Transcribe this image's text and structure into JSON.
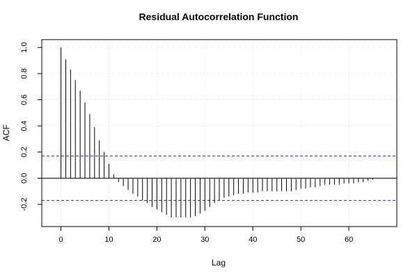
{
  "chart_data": {
    "type": "bar",
    "title": "Residual Autocorrelation Function",
    "xlabel": "Lag",
    "ylabel": "ACF",
    "xlim": [
      -4,
      70
    ],
    "ylim": [
      -0.37,
      1.06
    ],
    "x_ticks": [
      0,
      10,
      20,
      30,
      40,
      50,
      60
    ],
    "y_ticks": [
      -0.2,
      0.0,
      0.2,
      0.4,
      0.6,
      0.8,
      1.0
    ],
    "grid": true,
    "confidence_bound": 0.17,
    "colors": {
      "bars": "#000000",
      "confidence": "#2222dd",
      "grid": "#dddddd",
      "zero_line": "#000000"
    },
    "lags": [
      0,
      1,
      2,
      3,
      4,
      5,
      6,
      7,
      8,
      9,
      10,
      11,
      12,
      13,
      14,
      15,
      16,
      17,
      18,
      19,
      20,
      21,
      22,
      23,
      24,
      25,
      26,
      27,
      28,
      29,
      30,
      31,
      32,
      33,
      34,
      35,
      36,
      37,
      38,
      39,
      40,
      41,
      42,
      43,
      44,
      45,
      46,
      47,
      48,
      49,
      50,
      51,
      52,
      53,
      54,
      55,
      56,
      57,
      58,
      59,
      60,
      61,
      62,
      63,
      64,
      65,
      66
    ],
    "values": [
      1.0,
      0.91,
      0.83,
      0.75,
      0.67,
      0.58,
      0.49,
      0.39,
      0.29,
      0.2,
      0.11,
      0.03,
      -0.03,
      -0.06,
      -0.09,
      -0.12,
      -0.14,
      -0.17,
      -0.19,
      -0.22,
      -0.24,
      -0.26,
      -0.28,
      -0.3,
      -0.3,
      -0.3,
      -0.3,
      -0.3,
      -0.29,
      -0.27,
      -0.25,
      -0.22,
      -0.19,
      -0.17,
      -0.15,
      -0.14,
      -0.13,
      -0.12,
      -0.12,
      -0.11,
      -0.11,
      -0.11,
      -0.1,
      -0.1,
      -0.1,
      -0.1,
      -0.1,
      -0.1,
      -0.1,
      -0.09,
      -0.08,
      -0.08,
      -0.07,
      -0.07,
      -0.06,
      -0.05,
      -0.05,
      -0.05,
      -0.05,
      -0.04,
      -0.04,
      -0.04,
      -0.03,
      -0.03,
      -0.02,
      -0.01,
      0.0
    ]
  }
}
